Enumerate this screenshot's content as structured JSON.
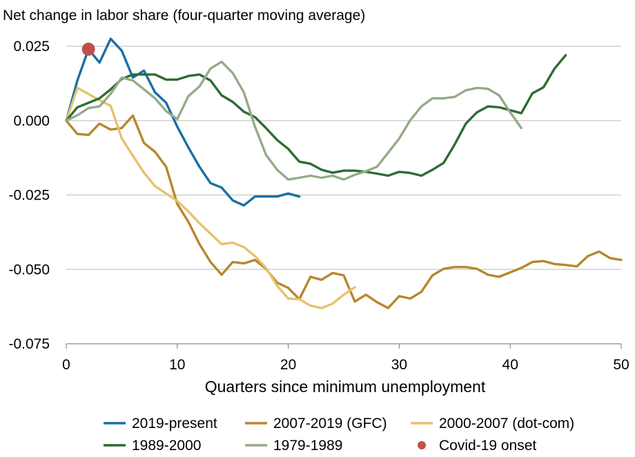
{
  "chart_data": {
    "type": "line",
    "title": "Net change in labor share (four-quarter moving average)",
    "xlabel": "Quarters since minimum unemployment",
    "ylabel": "",
    "xlim": [
      0,
      50
    ],
    "ylim": [
      -0.075,
      0.025
    ],
    "x_ticks": [
      0,
      10,
      20,
      30,
      40,
      50
    ],
    "y_ticks": [
      0.025,
      0.0,
      -0.025,
      -0.05,
      -0.075
    ],
    "x_tick_labels": [
      "0",
      "10",
      "20",
      "30",
      "40",
      "50"
    ],
    "y_tick_labels": [
      "0.025",
      "0.000",
      "-0.025",
      "-0.050",
      "-0.075"
    ],
    "grid": "horizontal",
    "legend_position": "bottom",
    "series": [
      {
        "name": "2019-present",
        "color": "#1a6fa3",
        "x": [
          0,
          1,
          2,
          3,
          4,
          5,
          6,
          7,
          8,
          9,
          10,
          11,
          12,
          13,
          14,
          15,
          16,
          17,
          18,
          19,
          20,
          21
        ],
        "y": [
          0.0,
          0.0135,
          0.024,
          0.0195,
          0.0275,
          0.0235,
          0.0145,
          0.0168,
          0.0095,
          0.006,
          -0.002,
          -0.009,
          -0.0155,
          -0.021,
          -0.0225,
          -0.0268,
          -0.0285,
          -0.0255,
          -0.0255,
          -0.0255,
          -0.0245,
          -0.0255
        ]
      },
      {
        "name": "2007-2019 (GFC)",
        "color": "#b8862e",
        "x": [
          0,
          1,
          2,
          3,
          4,
          5,
          6,
          7,
          8,
          9,
          10,
          11,
          12,
          13,
          14,
          15,
          16,
          17,
          18,
          19,
          20,
          21,
          22,
          23,
          24,
          25,
          26,
          27,
          28,
          29,
          30,
          31,
          32,
          33,
          34,
          35,
          36,
          37,
          38,
          39,
          40,
          41,
          42,
          43,
          44,
          45,
          46,
          47,
          48,
          49,
          50
        ],
        "y": [
          0.0,
          -0.0045,
          -0.0048,
          -0.001,
          -0.003,
          -0.0025,
          0.0017,
          -0.0075,
          -0.0105,
          -0.0155,
          -0.028,
          -0.034,
          -0.0415,
          -0.0475,
          -0.0518,
          -0.0475,
          -0.048,
          -0.0468,
          -0.0498,
          -0.0545,
          -0.0562,
          -0.06,
          -0.0525,
          -0.0535,
          -0.0512,
          -0.052,
          -0.0608,
          -0.0585,
          -0.061,
          -0.063,
          -0.059,
          -0.0598,
          -0.0575,
          -0.052,
          -0.0498,
          -0.0492,
          -0.0492,
          -0.0498,
          -0.0518,
          -0.0525,
          -0.051,
          -0.0495,
          -0.0475,
          -0.0472,
          -0.0482,
          -0.0485,
          -0.049,
          -0.0455,
          -0.044,
          -0.0462,
          -0.0468
        ]
      },
      {
        "name": "2000-2007 (dot-com)",
        "color": "#e6c170",
        "x": [
          0,
          1,
          2,
          3,
          4,
          5,
          6,
          7,
          8,
          9,
          10,
          11,
          12,
          13,
          14,
          15,
          16,
          17,
          18,
          19,
          20,
          21,
          22,
          23,
          24,
          25,
          26
        ],
        "y": [
          0.0,
          0.011,
          0.009,
          0.0068,
          0.005,
          -0.006,
          -0.0118,
          -0.0175,
          -0.022,
          -0.0245,
          -0.027,
          -0.0305,
          -0.0345,
          -0.038,
          -0.0415,
          -0.041,
          -0.0425,
          -0.0455,
          -0.0495,
          -0.0555,
          -0.0598,
          -0.06,
          -0.0622,
          -0.063,
          -0.0615,
          -0.0585,
          -0.056
        ]
      },
      {
        "name": "1989-2000",
        "color": "#2e6b34",
        "x": [
          0,
          1,
          2,
          3,
          4,
          5,
          6,
          7,
          8,
          9,
          10,
          11,
          12,
          13,
          14,
          15,
          16,
          17,
          18,
          19,
          20,
          21,
          22,
          23,
          24,
          25,
          26,
          27,
          28,
          29,
          30,
          31,
          32,
          33,
          34,
          35,
          36,
          37,
          38,
          39,
          40,
          41,
          42,
          43,
          44,
          45
        ],
        "y": [
          0.0,
          0.0045,
          0.006,
          0.0075,
          0.0105,
          0.014,
          0.0155,
          0.0155,
          0.0155,
          0.0138,
          0.0138,
          0.015,
          0.0155,
          0.0135,
          0.0085,
          0.0063,
          0.003,
          0.0012,
          -0.0025,
          -0.0065,
          -0.0095,
          -0.0138,
          -0.0145,
          -0.0165,
          -0.0175,
          -0.0168,
          -0.0168,
          -0.0172,
          -0.0178,
          -0.0185,
          -0.0172,
          -0.0176,
          -0.0185,
          -0.0165,
          -0.0142,
          -0.008,
          -0.001,
          0.0028,
          0.0048,
          0.0045,
          0.0035,
          0.0025,
          0.0092,
          0.0112,
          0.0175,
          0.022
        ]
      },
      {
        "name": "1979-1989",
        "color": "#95ab87",
        "x": [
          0,
          1,
          2,
          3,
          4,
          5,
          6,
          7,
          8,
          9,
          10,
          11,
          12,
          13,
          14,
          15,
          16,
          17,
          18,
          19,
          20,
          21,
          22,
          23,
          24,
          25,
          26,
          27,
          28,
          29,
          30,
          31,
          32,
          33,
          34,
          35,
          36,
          37,
          38,
          39,
          40,
          41
        ],
        "y": [
          0.0,
          0.0018,
          0.0042,
          0.0048,
          0.009,
          0.0145,
          0.0135,
          0.0105,
          0.0075,
          0.0032,
          0.0005,
          0.0082,
          0.0115,
          0.0175,
          0.0198,
          0.016,
          0.0095,
          -0.002,
          -0.0115,
          -0.0165,
          -0.0198,
          -0.0192,
          -0.0185,
          -0.0192,
          -0.0185,
          -0.0198,
          -0.0182,
          -0.017,
          -0.0155,
          -0.0108,
          -0.006,
          0.0002,
          0.0048,
          0.0075,
          0.0075,
          0.008,
          0.0102,
          0.011,
          0.0107,
          0.0085,
          0.0028,
          -0.0025
        ]
      },
      {
        "name": "Covid-19 onset",
        "color": "#c0504d",
        "type": "scatter",
        "x": [
          2
        ],
        "y": [
          0.024
        ]
      }
    ]
  }
}
